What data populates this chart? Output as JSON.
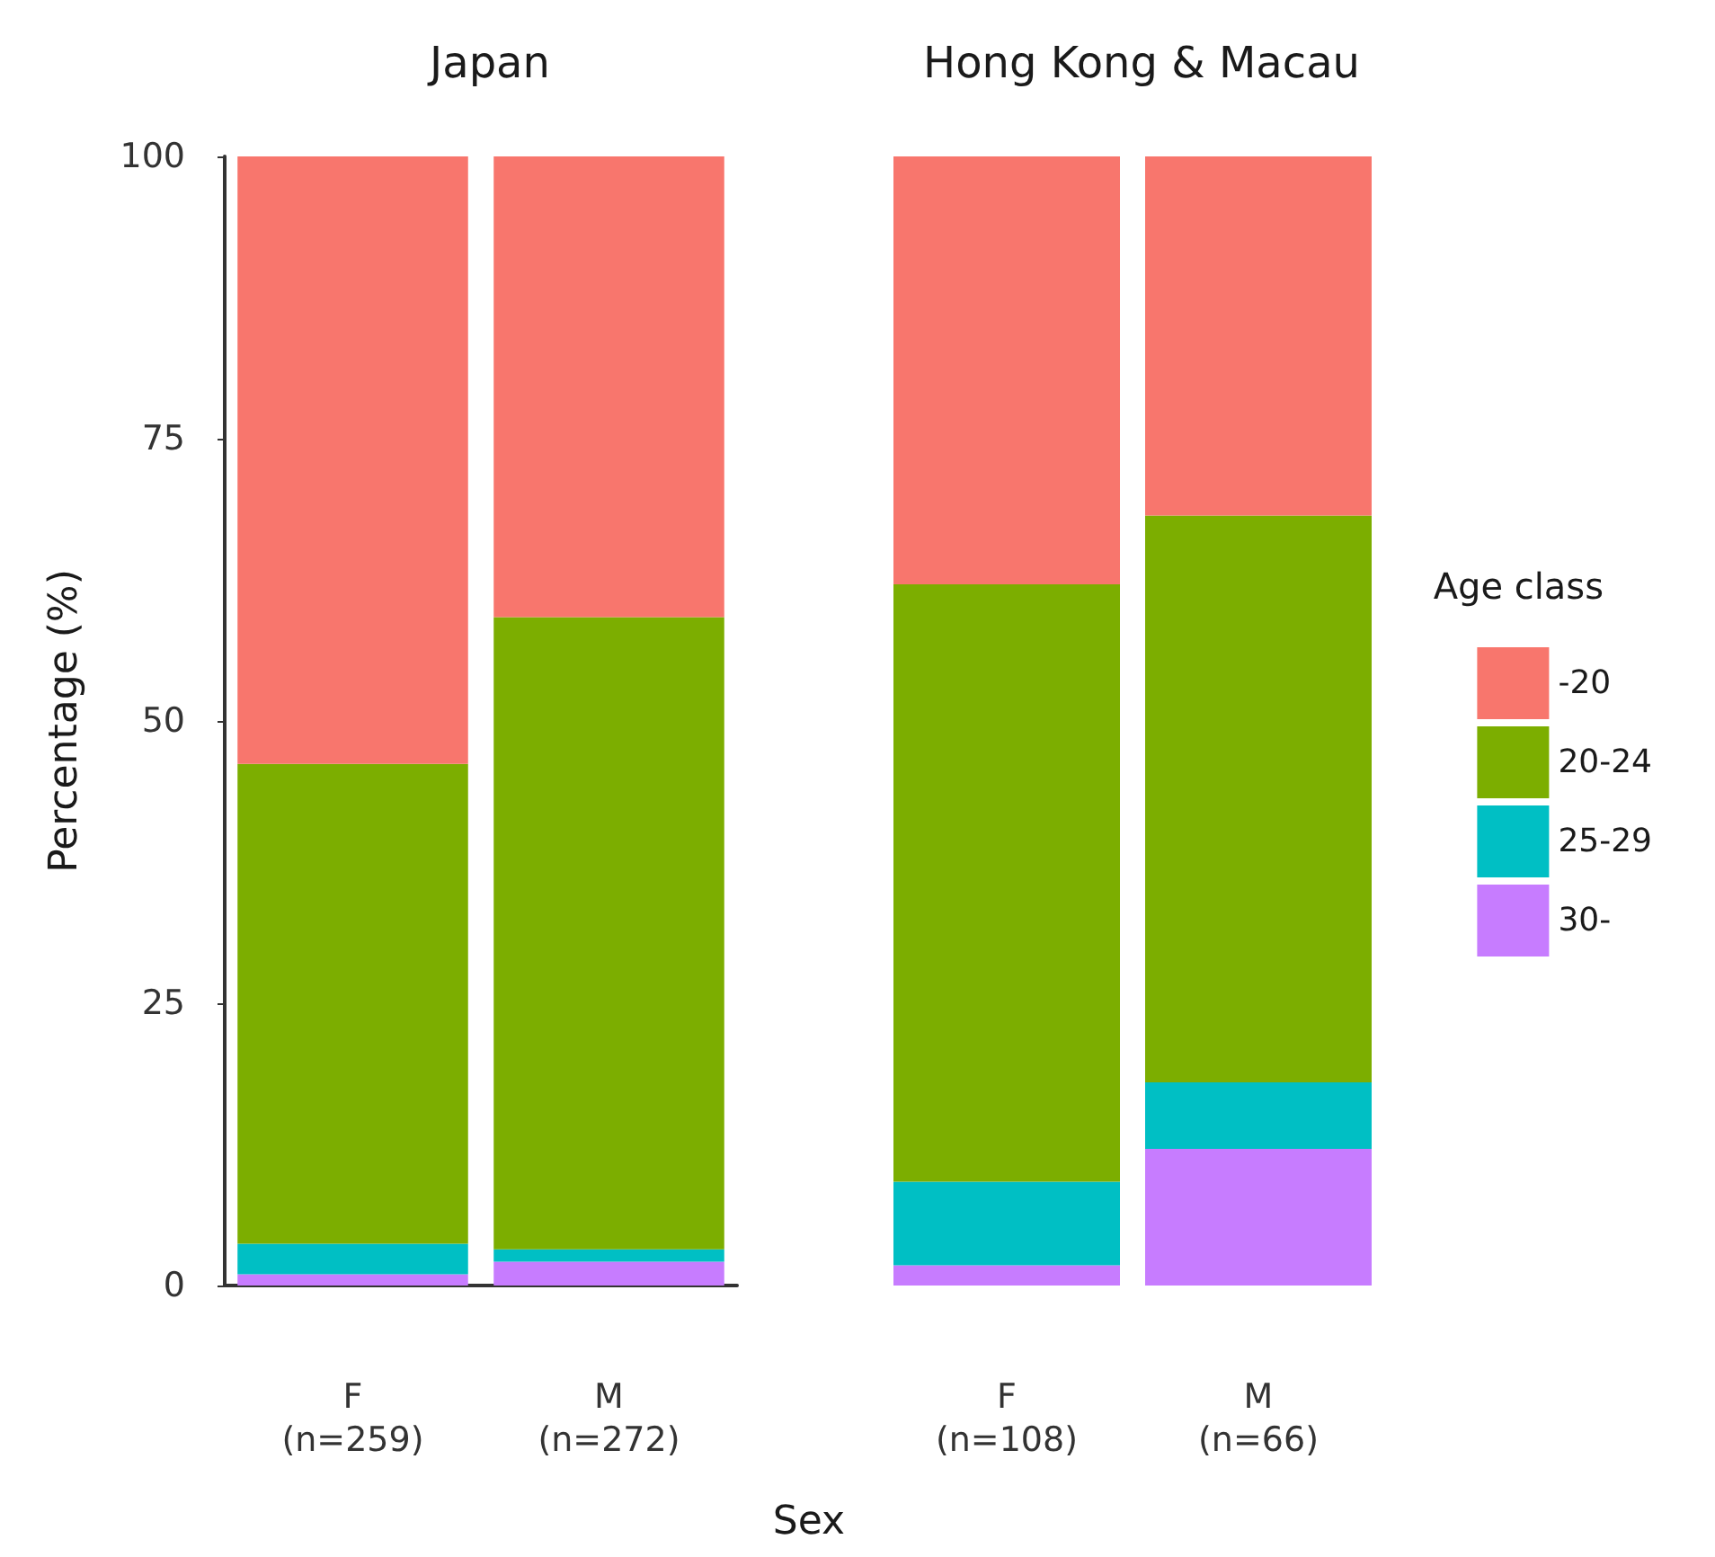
{
  "chart_data": [
    {
      "type": "bar",
      "title": "Japan",
      "ylabel": "Percentage (%)",
      "xlabel": "Sex",
      "categories": [
        "F\n(n=259)",
        "M\n(n=272)"
      ],
      "stacked": true,
      "ylim": [
        0,
        100
      ],
      "yticks": [
        0,
        25,
        50,
        75,
        100
      ],
      "grid": false,
      "legend": false,
      "series": [
        {
          "color": "#c77cff",
          "values": [
            1.0,
            2.1
          ]
        },
        {
          "color": "#00bfc4",
          "values": [
            2.7,
            1.1
          ]
        },
        {
          "color": "#7cae00",
          "values": [
            42.5,
            56.0
          ]
        },
        {
          "color": "#f8766d",
          "values": [
            53.8,
            40.8
          ]
        }
      ]
    },
    {
      "type": "bar",
      "title": "Hong Kong & Macau",
      "categories": [
        "F\n(n=108)",
        "M\n(n=66)"
      ],
      "stacked": true,
      "ylim": [
        0,
        100
      ],
      "yticks": [
        0,
        25,
        50,
        75,
        100
      ],
      "tick_labels": "x",
      "grid": false,
      "legend": "right",
      "legend_title": "Age class",
      "series": [
        {
          "name": "30-",
          "color": "#c77cff",
          "values": [
            1.8,
            12.1
          ]
        },
        {
          "name": "25-29",
          "color": "#00bfc4",
          "values": [
            7.4,
            5.9
          ]
        },
        {
          "name": "20-24",
          "color": "#7cae00",
          "values": [
            52.9,
            50.2
          ]
        },
        {
          "name": "-20",
          "color": "#f8766d",
          "values": [
            37.9,
            31.8
          ]
        }
      ]
    }
  ]
}
